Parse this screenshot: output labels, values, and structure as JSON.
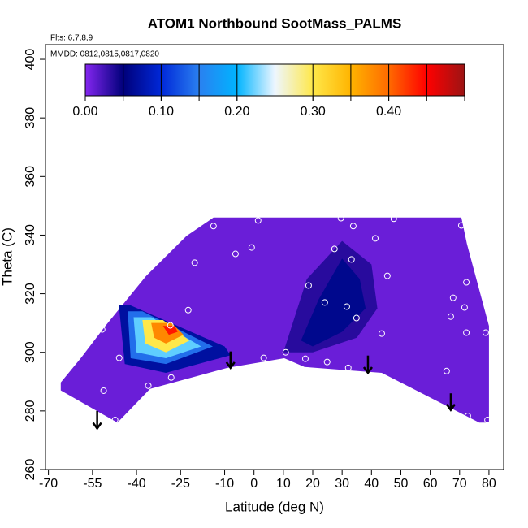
{
  "chart_data": {
    "type": "contour",
    "title": "ATOM1 Northbound SootMass_PALMS",
    "flights": "Flts: 6,7,8,9",
    "dates": "MMDD: 0812,0815,0817,0820",
    "xlabel": "Latitude (deg N)",
    "ylabel": "Theta (C)",
    "xlim": [
      -71,
      85
    ],
    "ylim": [
      260,
      405
    ],
    "xticks": [
      -70,
      -55,
      -40,
      -25,
      -10,
      0,
      10,
      20,
      30,
      40,
      50,
      60,
      70,
      80
    ],
    "yticks": [
      260,
      280,
      300,
      320,
      340,
      360,
      380,
      400
    ],
    "colorbar": {
      "lim": [
        0,
        0.5
      ],
      "ticks": [
        {
          "value": 0,
          "label": "0.00"
        },
        {
          "value": 0.1,
          "label": "0.10"
        },
        {
          "value": 0.2,
          "label": "0.20"
        },
        {
          "value": 0.3,
          "label": "0.30"
        },
        {
          "value": 0.4,
          "label": "0.40"
        }
      ],
      "stops": [
        0,
        0.05,
        0.1,
        0.15,
        0.2,
        0.25,
        0.3,
        0.35,
        0.4,
        0.45,
        0.5
      ],
      "colors": [
        "#8426f0",
        "#00007a",
        "#0028d8",
        "#2a80f0",
        "#00b4ff",
        "#eef6ff",
        "#ffe84a",
        "#ffb400",
        "#ff6a00",
        "#ff0000",
        "#9c1414"
      ]
    },
    "regions": [
      {
        "value": 0.01,
        "lat": [
          -13.8,
          70.6,
          72.5,
          80,
          80,
          76.7,
          43.5,
          17.2,
          10.3,
          -9.1,
          -35.4,
          -46.5,
          -65.8,
          -65.8,
          -59,
          -50.6,
          -36.8,
          -23
        ],
        "theta": [
          346,
          346,
          337,
          309,
          276,
          276,
          293,
          295,
          298,
          294.7,
          287.5,
          276,
          287,
          289.7,
          298,
          309,
          326,
          339.7
        ]
      },
      {
        "value": 0.035,
        "lat": [
          10,
          18,
          30,
          40,
          42,
          35,
          20
        ],
        "theta": [
          300,
          325,
          338,
          330,
          315,
          305,
          300
        ]
      },
      {
        "value": 0.06,
        "lat": [
          16,
          22,
          30,
          36,
          38,
          30,
          20
        ],
        "theta": [
          304,
          318,
          332,
          325,
          315,
          307,
          302
        ]
      },
      {
        "value": 0.07,
        "lat": [
          -46,
          -42,
          -10,
          -8,
          -30,
          -44
        ],
        "theta": [
          316,
          316,
          302,
          299,
          293,
          296
        ]
      },
      {
        "value": 0.14,
        "lat": [
          -43,
          -38,
          -14,
          -30,
          -42
        ],
        "theta": [
          314,
          314,
          302,
          296,
          298
        ]
      },
      {
        "value": 0.22,
        "lat": [
          -41,
          -35,
          -18,
          -30,
          -40
        ],
        "theta": [
          312,
          312,
          302,
          298,
          300
        ]
      },
      {
        "value": 0.3,
        "lat": [
          -38,
          -31,
          -22,
          -30,
          -37
        ],
        "theta": [
          311,
          311,
          304,
          300,
          303
        ]
      },
      {
        "value": 0.38,
        "lat": [
          -35,
          -28,
          -24,
          -30,
          -34
        ],
        "theta": [
          310,
          310,
          306,
          303,
          305
        ]
      },
      {
        "value": 0.44,
        "lat": [
          -31,
          -27,
          -26,
          -29
        ],
        "theta": [
          309,
          309,
          307,
          306
        ]
      }
    ],
    "points": {
      "x": [
        -13.8,
        1.4,
        20.8,
        29.6,
        33.8,
        47.6,
        70.6,
        -6.3,
        -0.8,
        -20.2,
        27.4,
        41.3,
        33.2,
        18.6,
        24.1,
        31.6,
        34.9,
        43.5,
        45.4,
        67.8,
        72.3,
        71.7,
        67,
        72.3,
        78.9,
        -22.4,
        -28.5,
        -51.7,
        -45.9,
        -36,
        -28.2,
        -51.2,
        -47.3,
        3.3,
        10.8,
        17.5,
        24.9,
        32.1,
        65.6,
        72.8,
        79.5
      ],
      "y": [
        343.1,
        345,
        347.5,
        345.8,
        343.1,
        345.6,
        343.3,
        333.6,
        335.8,
        330.6,
        335.3,
        338.9,
        331.7,
        322.8,
        317,
        315.6,
        311.7,
        306.4,
        326.1,
        318.6,
        323.9,
        315.3,
        312.2,
        306.7,
        306.7,
        314.4,
        309.2,
        307.8,
        298.1,
        288.6,
        291.4,
        286.9,
        276.9,
        298.1,
        300,
        297.8,
        296.7,
        294.7,
        293.6,
        278.3,
        276.9
      ]
    },
    "arrows": {
      "x": [
        -53.4,
        -8,
        38.8,
        67
      ],
      "y_start": [
        280,
        300.3,
        298.9,
        286
      ],
      "y_end": [
        274,
        294.7,
        293,
        280.3
      ]
    }
  }
}
